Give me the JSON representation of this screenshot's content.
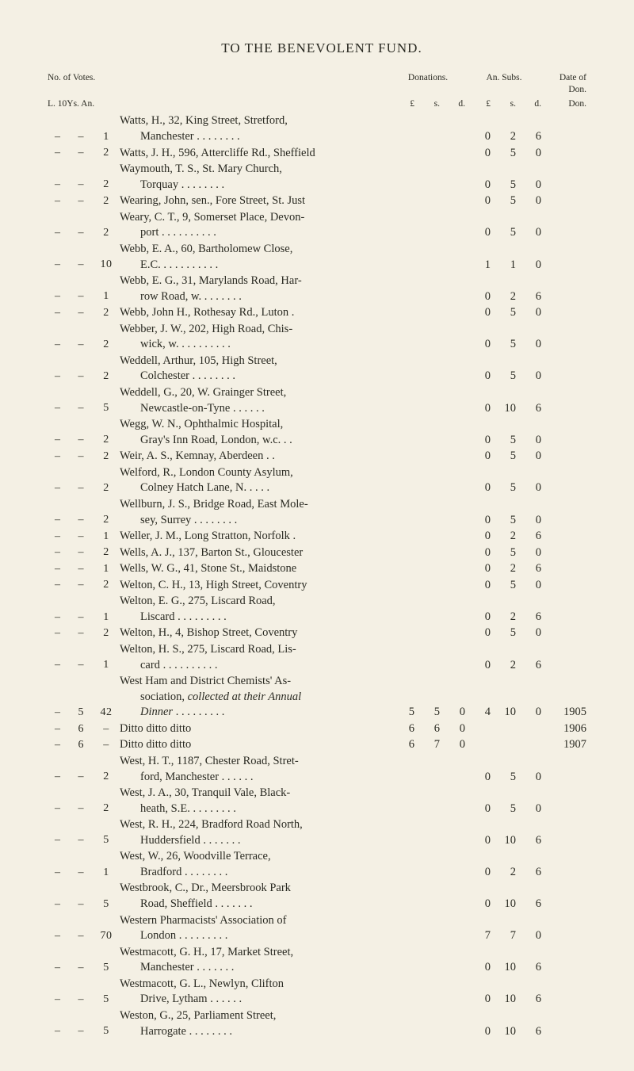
{
  "title": "TO THE BENEVOLENT FUND.",
  "headers": {
    "left_label": "No. of Votes.",
    "left_sub": "L. 10Ys. An.",
    "donations": "Donations.",
    "annual_subs": "An. Subs.",
    "date_of_don": "Date of Don.",
    "pound1": "£",
    "s1": "s.",
    "d1": "d.",
    "pound2": "£",
    "s2": "s.",
    "d2": "d."
  },
  "rows": [
    {
      "L": "–",
      "Y10": "–",
      "An": "1",
      "desc": [
        "Watts, H., 32, King Street, Stretford,",
        "Manchester . . . . . . . ."
      ],
      "aL": "0",
      "as": "2",
      "ad": "6"
    },
    {
      "L": "–",
      "Y10": "–",
      "An": "2",
      "desc": [
        "Watts, J. H., 596, Attercliffe Rd., Sheffield"
      ],
      "aL": "0",
      "as": "5",
      "ad": "0"
    },
    {
      "L": "–",
      "Y10": "–",
      "An": "2",
      "desc": [
        "Waymouth, T. S., St. Mary Church,",
        "Torquay   . . . . . . . ."
      ],
      "aL": "0",
      "as": "5",
      "ad": "0"
    },
    {
      "L": "–",
      "Y10": "–",
      "An": "2",
      "desc": [
        "Wearing, John, sen., Fore Street, St. Just"
      ],
      "aL": "0",
      "as": "5",
      "ad": "0"
    },
    {
      "L": "–",
      "Y10": "–",
      "An": "2",
      "desc": [
        "Weary, C. T., 9, Somerset Place, Devon-",
        "port . . . . . . . . . ."
      ],
      "aL": "0",
      "as": "5",
      "ad": "0"
    },
    {
      "L": "–",
      "Y10": "–",
      "An": "10",
      "desc": [
        "Webb, E. A., 60, Bartholomew Close,",
        "E.C. . . . . . . . . . ."
      ],
      "aL": "1",
      "as": "1",
      "ad": "0"
    },
    {
      "L": "–",
      "Y10": "–",
      "An": "1",
      "desc": [
        "Webb, E. G., 31, Marylands Road, Har-",
        "row Road, w. . . . . . . ."
      ],
      "aL": "0",
      "as": "2",
      "ad": "6"
    },
    {
      "L": "–",
      "Y10": "–",
      "An": "2",
      "desc": [
        "Webb, John H., Rothesay Rd., Luton ."
      ],
      "aL": "0",
      "as": "5",
      "ad": "0"
    },
    {
      "L": "–",
      "Y10": "–",
      "An": "2",
      "desc": [
        "Webber, J. W., 202, High Road, Chis-",
        "wick, w. . . . . . . . . ."
      ],
      "aL": "0",
      "as": "5",
      "ad": "0"
    },
    {
      "L": "–",
      "Y10": "–",
      "An": "2",
      "desc": [
        "Weddell, Arthur, 105, High Street,",
        "Colchester . . . . . . . ."
      ],
      "aL": "0",
      "as": "5",
      "ad": "0"
    },
    {
      "L": "–",
      "Y10": "–",
      "An": "5",
      "desc": [
        "Weddell, G., 20, W. Grainger Street,",
        "Newcastle-on-Tyne . . . . . ."
      ],
      "aL": "0",
      "as": "10",
      "ad": "6"
    },
    {
      "L": "–",
      "Y10": "–",
      "An": "2",
      "desc": [
        "Wegg, W. N., Ophthalmic Hospital,",
        "Gray's Inn Road, London, w.c. . ."
      ],
      "aL": "0",
      "as": "5",
      "ad": "0"
    },
    {
      "L": "–",
      "Y10": "–",
      "An": "2",
      "desc": [
        "Weir, A. S., Kemnay, Aberdeen . ."
      ],
      "aL": "0",
      "as": "5",
      "ad": "0"
    },
    {
      "L": "–",
      "Y10": "–",
      "An": "2",
      "desc": [
        "Welford, R., London County Asylum,",
        "Colney Hatch Lane, N. . . . ."
      ],
      "aL": "0",
      "as": "5",
      "ad": "0"
    },
    {
      "L": "–",
      "Y10": "–",
      "An": "2",
      "desc": [
        "Wellburn, J. S., Bridge Road, East Mole-",
        "sey, Surrey . . . . . . . ."
      ],
      "aL": "0",
      "as": "5",
      "ad": "0"
    },
    {
      "L": "–",
      "Y10": "–",
      "An": "1",
      "desc": [
        "Weller, J. M., Long Stratton, Norfolk ."
      ],
      "aL": "0",
      "as": "2",
      "ad": "6"
    },
    {
      "L": "–",
      "Y10": "–",
      "An": "2",
      "desc": [
        "Wells, A. J., 137, Barton St., Gloucester"
      ],
      "aL": "0",
      "as": "5",
      "ad": "0"
    },
    {
      "L": "–",
      "Y10": "–",
      "An": "1",
      "desc": [
        "Wells, W. G., 41, Stone St., Maidstone"
      ],
      "aL": "0",
      "as": "2",
      "ad": "6"
    },
    {
      "L": "–",
      "Y10": "–",
      "An": "2",
      "desc": [
        "Welton, C. H., 13, High Street, Coventry"
      ],
      "aL": "0",
      "as": "5",
      "ad": "0"
    },
    {
      "L": "–",
      "Y10": "–",
      "An": "1",
      "desc": [
        "Welton, E. G., 275, Liscard Road,",
        "Liscard . . . . . . . . ."
      ],
      "aL": "0",
      "as": "2",
      "ad": "6"
    },
    {
      "L": "–",
      "Y10": "–",
      "An": "2",
      "desc": [
        "Welton, H., 4, Bishop Street, Coventry"
      ],
      "aL": "0",
      "as": "5",
      "ad": "0"
    },
    {
      "L": "–",
      "Y10": "–",
      "An": "1",
      "desc": [
        "Welton, H. S., 275, Liscard Road, Lis-",
        "card . . . . . . . . . ."
      ],
      "aL": "0",
      "as": "2",
      "ad": "6"
    },
    {
      "L": "–",
      "Y10": "5",
      "An": "42",
      "desc": [
        "West Ham and District Chemists' As-",
        "sociation, collected at their Annual",
        "Dinner . . . . . . . . ."
      ],
      "dL": "5",
      "ds": "5",
      "dd": "0",
      "aL": "4",
      "as": "10",
      "ad": "0",
      "don": "1905",
      "italicParts": "collected at their Annual Dinner"
    },
    {
      "L": "–",
      "Y10": "6",
      "An": "–",
      "desc": [
        "    Ditto          ditto          ditto"
      ],
      "dL": "6",
      "ds": "6",
      "dd": "0",
      "don": "1906"
    },
    {
      "L": "–",
      "Y10": "6",
      "An": "–",
      "desc": [
        "    Ditto          ditto          ditto"
      ],
      "dL": "6",
      "ds": "7",
      "dd": "0",
      "don": "1907"
    },
    {
      "L": "–",
      "Y10": "–",
      "An": "2",
      "desc": [
        "West, H. T., 1187, Chester Road, Stret-",
        "ford, Manchester . . . . . ."
      ],
      "aL": "0",
      "as": "5",
      "ad": "0"
    },
    {
      "L": "–",
      "Y10": "–",
      "An": "2",
      "desc": [
        "West, J. A., 30, Tranquil Vale, Black-",
        "heath, S.E. . . . . . . . ."
      ],
      "aL": "0",
      "as": "5",
      "ad": "0"
    },
    {
      "L": "–",
      "Y10": "–",
      "An": "5",
      "desc": [
        "West, R. H., 224, Bradford Road North,",
        "Huddersfield   . . . . . . ."
      ],
      "aL": "0",
      "as": "10",
      "ad": "6"
    },
    {
      "L": "–",
      "Y10": "–",
      "An": "1",
      "desc": [
        "West, W., 26, Woodville Terrace,",
        "Bradford   . . . . . . . ."
      ],
      "aL": "0",
      "as": "2",
      "ad": "6"
    },
    {
      "L": "–",
      "Y10": "–",
      "An": "5",
      "desc": [
        "Westbrook, C., Dr., Meersbrook Park",
        "Road, Sheffield . . . . . . ."
      ],
      "aL": "0",
      "as": "10",
      "ad": "6"
    },
    {
      "L": "–",
      "Y10": "–",
      "An": "70",
      "desc": [
        "Western Pharmacists' Association of",
        "London . . . . . . . . ."
      ],
      "aL": "7",
      "as": "7",
      "ad": "0"
    },
    {
      "L": "–",
      "Y10": "–",
      "An": "5",
      "desc": [
        "Westmacott, G. H., 17, Market Street,",
        "Manchester   . . . . . . ."
      ],
      "aL": "0",
      "as": "10",
      "ad": "6"
    },
    {
      "L": "–",
      "Y10": "–",
      "An": "5",
      "desc": [
        "Westmacott, G. L., Newlyn, Clifton",
        "Drive, Lytham   . . . . . ."
      ],
      "aL": "0",
      "as": "10",
      "ad": "6"
    },
    {
      "L": "–",
      "Y10": "–",
      "An": "5",
      "desc": [
        "Weston, G., 25, Parliament Street,",
        "Harrogate . . . . . . . ."
      ],
      "aL": "0",
      "as": "10",
      "ad": "6"
    }
  ]
}
